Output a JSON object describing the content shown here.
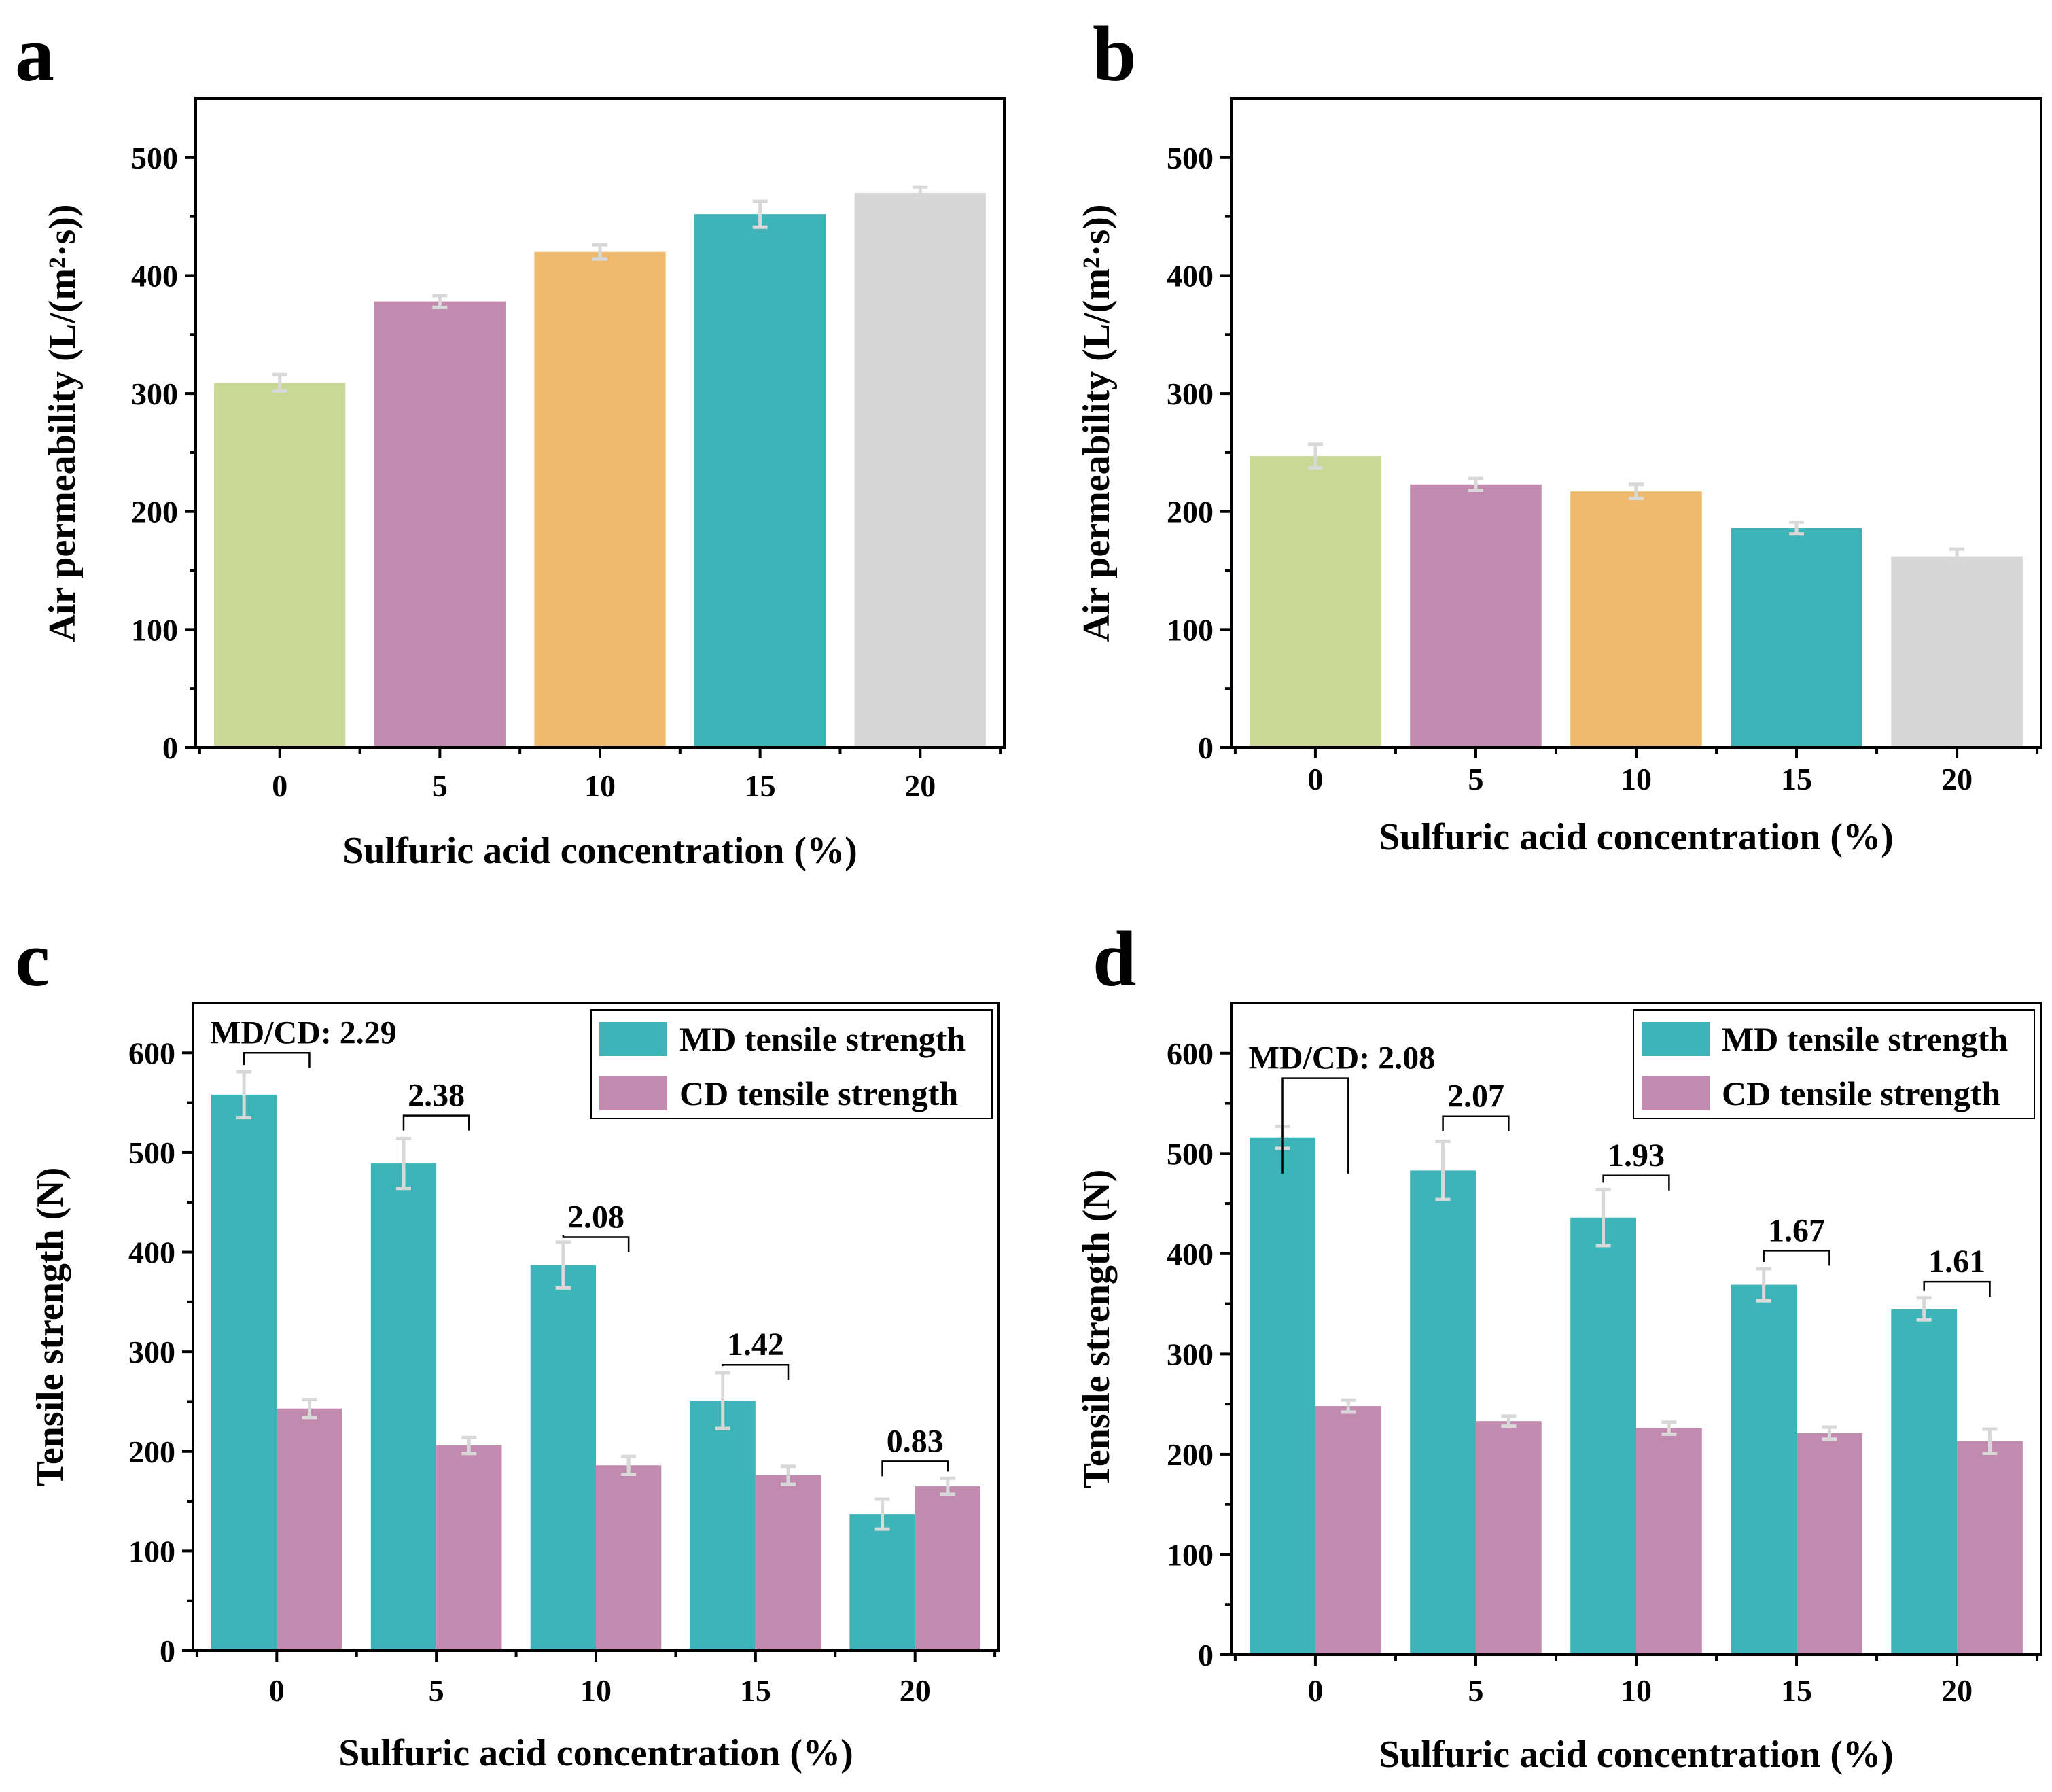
{
  "figure": {
    "panel_count": 4
  },
  "chart_data": [
    {
      "panel": "a",
      "type": "bar",
      "xlabel": "Sulfuric acid concentration (%)",
      "ylabel": "Air permeability (L/(m²·s))",
      "ylim": [
        0,
        550
      ],
      "yticks": [
        0,
        100,
        200,
        300,
        400,
        500
      ],
      "categories": [
        "0",
        "5",
        "10",
        "15",
        "20"
      ],
      "values": [
        309,
        378,
        420,
        452,
        470
      ],
      "errors": [
        7,
        5,
        6,
        11,
        5
      ],
      "colors": [
        "#c9d894",
        "#c38aaf",
        "#efba6e",
        "#3cb4b8",
        "#d6d6d6"
      ]
    },
    {
      "panel": "b",
      "type": "bar",
      "xlabel": "Sulfuric acid concentration (%)",
      "ylabel": "Air permeability (L/(m²·s))",
      "ylim": [
        0,
        550
      ],
      "yticks": [
        0,
        100,
        200,
        300,
        400,
        500
      ],
      "categories": [
        "0",
        "5",
        "10",
        "15",
        "20"
      ],
      "values": [
        247,
        223,
        217,
        186,
        162
      ],
      "errors": [
        10,
        5,
        6,
        5,
        6
      ],
      "colors": [
        "#c9d894",
        "#c38aaf",
        "#efba6e",
        "#3cb4b8",
        "#d6d6d6"
      ]
    },
    {
      "panel": "c",
      "type": "bar",
      "xlabel": "Sulfuric acid concentration (%)",
      "ylabel": "Tensile strength (N)",
      "ylim": [
        0,
        650
      ],
      "yticks": [
        0,
        100,
        200,
        300,
        400,
        500,
        600
      ],
      "categories": [
        "0",
        "5",
        "10",
        "15",
        "20"
      ],
      "legend": "top-right",
      "series": [
        {
          "name": "MD tensile strength",
          "color": "#3cb4b8",
          "values": [
            558,
            489,
            387,
            251,
            137
          ],
          "errors": [
            23,
            25,
            23,
            28,
            15
          ]
        },
        {
          "name": "CD tensile strength",
          "color": "#c38aaf",
          "values": [
            243,
            206,
            186,
            176,
            165
          ],
          "errors": [
            9,
            8,
            9,
            9,
            8
          ]
        }
      ],
      "ratio_labels": [
        "MD/CD: 2.29",
        "2.38",
        "2.08",
        "1.42",
        "0.83"
      ],
      "ratio_bracket_values": [
        600,
        537,
        415,
        287,
        190
      ]
    },
    {
      "panel": "d",
      "type": "bar",
      "xlabel": "Sulfuric acid concentration (%)",
      "ylabel": "Tensile strength (N)",
      "ylim": [
        0,
        650
      ],
      "yticks": [
        0,
        100,
        200,
        300,
        400,
        500,
        600
      ],
      "categories": [
        "0",
        "5",
        "10",
        "15",
        "20"
      ],
      "legend": "top-right",
      "series": [
        {
          "name": "MD tensile strength",
          "color": "#3cb4b8",
          "values": [
            516,
            483,
            436,
            369,
            345
          ],
          "errors": [
            11,
            29,
            28,
            16,
            11
          ]
        },
        {
          "name": "CD tensile strength",
          "color": "#c38aaf",
          "values": [
            248,
            233,
            226,
            221,
            213
          ],
          "errors": [
            6,
            5,
            6,
            6,
            12
          ]
        }
      ],
      "ratio_labels": [
        "MD/CD: 2.08",
        "2.07",
        "1.93",
        "1.67",
        "1.61"
      ],
      "ratio_bracket_values": [
        575,
        537,
        478,
        403,
        372
      ]
    }
  ]
}
